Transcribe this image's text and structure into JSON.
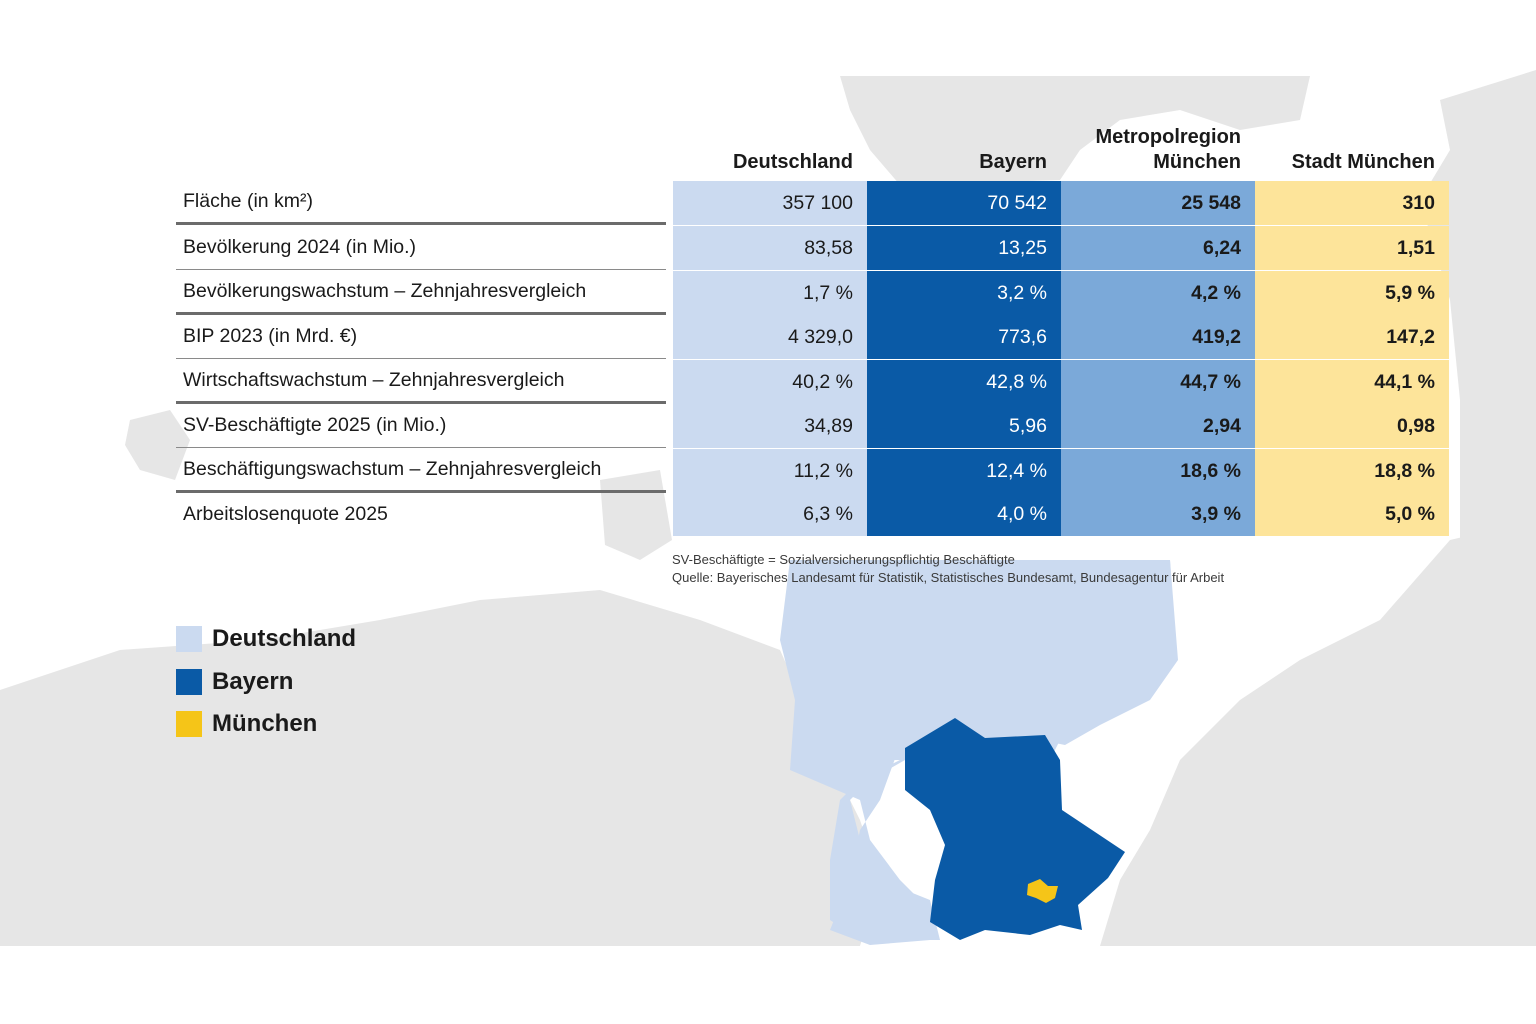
{
  "colors": {
    "deutschland": "#cbdaf0",
    "bayern": "#0a5aa6",
    "metropolregion": "#7ba9d9",
    "stadt_muenchen": "#fde49a",
    "muenchen_map": "#f5c518",
    "background_map": "#e6e6e6"
  },
  "chart_data": {
    "type": "table",
    "columns": [
      "Deutschland",
      "Bayern",
      "Metropolregion\nMünchen",
      "Stadt München"
    ],
    "columns_lines": [
      [
        "Deutschland"
      ],
      [
        "Bayern"
      ],
      [
        "Metropolregion",
        "München"
      ],
      [
        "Stadt München"
      ]
    ],
    "rows": [
      {
        "label": "Fläche (in km²)",
        "values": [
          "357 100",
          "70 542",
          "25 548",
          "310"
        ]
      },
      {
        "label": "Bevölkerung 2024 (in Mio.)",
        "values": [
          "83,58",
          "13,25",
          "6,24",
          "1,51"
        ]
      },
      {
        "label": "Bevölkerungswachstum – Zehnjahresvergleich",
        "values": [
          "1,7 %",
          "3,2 %",
          "4,2 %",
          "5,9 %"
        ]
      },
      {
        "label": "BIP 2023 (in Mrd. €)",
        "values": [
          "4 329,0",
          "773,6",
          "419,2",
          "147,2"
        ]
      },
      {
        "label": "Wirtschaftswachstum – Zehnjahresvergleich",
        "values": [
          "40,2 %",
          "42,8 %",
          "44,7 %",
          "44,1 %"
        ]
      },
      {
        "label": "SV-Beschäftigte 2025 (in Mio.)",
        "values": [
          "34,89",
          "5,96",
          "2,94",
          "0,98"
        ]
      },
      {
        "label": "Beschäftigungswachstum – Zehnjahresvergleich",
        "values": [
          "11,2 %",
          "12,4 %",
          "18,6 %",
          "18,8 %"
        ]
      },
      {
        "label": "Arbeitslosenquote 2025",
        "values": [
          "6,3 %",
          "4,0 %",
          "3,9 %",
          "5,0 %"
        ]
      }
    ],
    "legend": [
      "Deutschland",
      "Bayern",
      "München"
    ]
  },
  "notes": {
    "abbreviation": "SV-Beschäftigte = Sozialversicherungspflichtig Beschäftigte",
    "source": "Quelle: Bayerisches Landesamt für Statistik, Statistisches Bundesamt, Bundesagentur für Arbeit"
  }
}
